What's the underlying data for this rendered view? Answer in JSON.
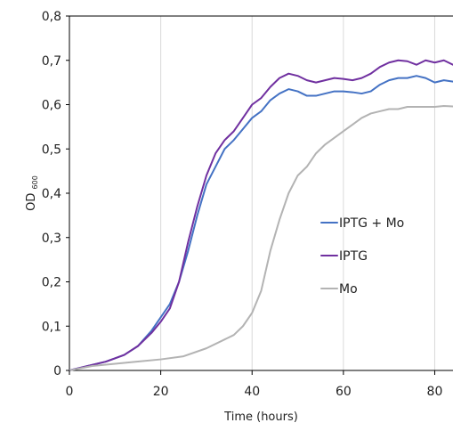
{
  "chart_data": {
    "type": "line",
    "xlabel": "Time (hours)",
    "ylabel": {
      "main": "OD",
      "subscript": "600"
    },
    "xlim": [
      0,
      84
    ],
    "ylim": [
      0,
      0.8
    ],
    "x_ticks": [
      0,
      20,
      40,
      60,
      80
    ],
    "x_tick_labels": [
      "0",
      "20",
      "40",
      "60",
      "80"
    ],
    "y_ticks": [
      0,
      0.1,
      0.2,
      0.3,
      0.4,
      0.5,
      0.6,
      0.7,
      0.8
    ],
    "y_tick_labels": [
      "0",
      "0,1",
      "0,2",
      "0,3",
      "0,4",
      "0,5",
      "0,6",
      "0,7",
      "0,8"
    ],
    "grid": "vertical",
    "legend_position": "right-middle",
    "series": [
      {
        "name": "IPTG + Mo",
        "color": "#4472c4",
        "points": [
          [
            0,
            0.0
          ],
          [
            4,
            0.01
          ],
          [
            8,
            0.02
          ],
          [
            12,
            0.035
          ],
          [
            15,
            0.055
          ],
          [
            18,
            0.09
          ],
          [
            20,
            0.12
          ],
          [
            22,
            0.15
          ],
          [
            24,
            0.2
          ],
          [
            26,
            0.27
          ],
          [
            28,
            0.35
          ],
          [
            30,
            0.42
          ],
          [
            32,
            0.46
          ],
          [
            34,
            0.5
          ],
          [
            36,
            0.52
          ],
          [
            38,
            0.545
          ],
          [
            40,
            0.57
          ],
          [
            42,
            0.585
          ],
          [
            44,
            0.61
          ],
          [
            46,
            0.625
          ],
          [
            48,
            0.635
          ],
          [
            50,
            0.63
          ],
          [
            52,
            0.62
          ],
          [
            54,
            0.62
          ],
          [
            56,
            0.625
          ],
          [
            58,
            0.63
          ],
          [
            60,
            0.63
          ],
          [
            62,
            0.628
          ],
          [
            64,
            0.625
          ],
          [
            66,
            0.63
          ],
          [
            68,
            0.645
          ],
          [
            70,
            0.655
          ],
          [
            72,
            0.66
          ],
          [
            74,
            0.66
          ],
          [
            76,
            0.665
          ],
          [
            78,
            0.66
          ],
          [
            80,
            0.65
          ],
          [
            82,
            0.655
          ],
          [
            84,
            0.652
          ]
        ]
      },
      {
        "name": "IPTG",
        "color": "#7030a0",
        "points": [
          [
            0,
            0.0
          ],
          [
            4,
            0.01
          ],
          [
            8,
            0.02
          ],
          [
            12,
            0.035
          ],
          [
            15,
            0.055
          ],
          [
            18,
            0.085
          ],
          [
            20,
            0.11
          ],
          [
            22,
            0.14
          ],
          [
            24,
            0.2
          ],
          [
            26,
            0.29
          ],
          [
            28,
            0.37
          ],
          [
            30,
            0.44
          ],
          [
            32,
            0.49
          ],
          [
            34,
            0.52
          ],
          [
            36,
            0.54
          ],
          [
            38,
            0.57
          ],
          [
            40,
            0.6
          ],
          [
            42,
            0.615
          ],
          [
            44,
            0.64
          ],
          [
            46,
            0.66
          ],
          [
            48,
            0.67
          ],
          [
            50,
            0.665
          ],
          [
            52,
            0.655
          ],
          [
            54,
            0.65
          ],
          [
            56,
            0.655
          ],
          [
            58,
            0.66
          ],
          [
            60,
            0.658
          ],
          [
            62,
            0.655
          ],
          [
            64,
            0.66
          ],
          [
            66,
            0.67
          ],
          [
            68,
            0.685
          ],
          [
            70,
            0.695
          ],
          [
            72,
            0.7
          ],
          [
            74,
            0.698
          ],
          [
            76,
            0.69
          ],
          [
            78,
            0.7
          ],
          [
            80,
            0.695
          ],
          [
            82,
            0.7
          ],
          [
            84,
            0.69
          ]
        ]
      },
      {
        "name": "Mo",
        "color": "#b3b3b3",
        "points": [
          [
            0,
            0.0
          ],
          [
            5,
            0.01
          ],
          [
            10,
            0.015
          ],
          [
            15,
            0.02
          ],
          [
            20,
            0.025
          ],
          [
            25,
            0.032
          ],
          [
            30,
            0.05
          ],
          [
            34,
            0.07
          ],
          [
            36,
            0.08
          ],
          [
            38,
            0.1
          ],
          [
            40,
            0.13
          ],
          [
            42,
            0.18
          ],
          [
            44,
            0.27
          ],
          [
            46,
            0.34
          ],
          [
            48,
            0.4
          ],
          [
            50,
            0.44
          ],
          [
            52,
            0.46
          ],
          [
            54,
            0.49
          ],
          [
            56,
            0.51
          ],
          [
            58,
            0.525
          ],
          [
            60,
            0.54
          ],
          [
            62,
            0.555
          ],
          [
            64,
            0.57
          ],
          [
            66,
            0.58
          ],
          [
            68,
            0.585
          ],
          [
            70,
            0.59
          ],
          [
            72,
            0.59
          ],
          [
            74,
            0.595
          ],
          [
            76,
            0.595
          ],
          [
            78,
            0.595
          ],
          [
            80,
            0.595
          ],
          [
            82,
            0.597
          ],
          [
            84,
            0.596
          ]
        ]
      }
    ]
  }
}
